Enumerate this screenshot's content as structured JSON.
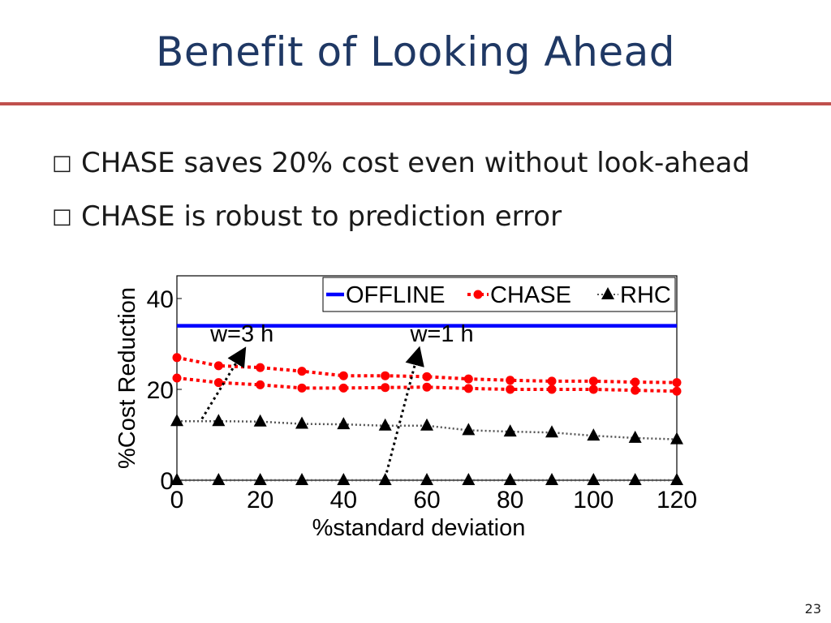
{
  "slide": {
    "title": "Benefit of Looking Ahead",
    "bullet_icon": "hollow-square",
    "bullets": [
      {
        "marker": "□",
        "text": "CHASE saves 20% cost even without look-ahead"
      },
      {
        "marker": "□",
        "text": "CHASE is robust to prediction error"
      }
    ],
    "page_number": "23",
    "accent_color": "#c0504d",
    "title_color": "#1f3864"
  },
  "chart_data": {
    "type": "line",
    "xlabel": "%standard deviation",
    "ylabel": "%Cost Reduction",
    "xlim": [
      0,
      120
    ],
    "ylim": [
      0,
      45
    ],
    "xticks": [
      0,
      20,
      40,
      60,
      80,
      100,
      120
    ],
    "yticks": [
      0,
      20,
      40
    ],
    "grid": false,
    "legend_position": "top-right",
    "legend": [
      {
        "name": "OFFLINE",
        "color": "#0000ff",
        "marker": "none",
        "style": "solid"
      },
      {
        "name": "CHASE",
        "color": "#ff0000",
        "marker": "circle",
        "style": "dotted"
      },
      {
        "name": "RHC",
        "color": "#000000",
        "marker": "triangle",
        "style": "dotted"
      }
    ],
    "x": [
      0,
      10,
      20,
      30,
      40,
      50,
      60,
      70,
      80,
      90,
      100,
      110,
      120
    ],
    "series": [
      {
        "name": "OFFLINE",
        "legend": "OFFLINE",
        "color": "#0000ff",
        "marker": "none",
        "style": "solid",
        "values": [
          34,
          34,
          34,
          34,
          34,
          34,
          34,
          34,
          34,
          34,
          34,
          34,
          34
        ]
      },
      {
        "name": "CHASE",
        "legend": "CHASE",
        "group": "w=3 h",
        "color": "#ff0000",
        "marker": "circle",
        "style": "dotted",
        "values": [
          27,
          25.2,
          24.8,
          24,
          23,
          23,
          22.8,
          22.3,
          22,
          21.8,
          21.8,
          21.6,
          21.5
        ]
      },
      {
        "name": "CHASE",
        "legend": null,
        "group": "w=1 h",
        "color": "#ff0000",
        "marker": "circle",
        "style": "dotted",
        "values": [
          22.5,
          21.5,
          21,
          20.3,
          20.3,
          20.4,
          20.5,
          20.2,
          20,
          20,
          20,
          19.8,
          19.6
        ]
      },
      {
        "name": "RHC",
        "legend": "RHC",
        "group": "w=3 h",
        "color": "#000000",
        "marker": "triangle",
        "style": "dotted",
        "values": [
          13,
          13,
          12.9,
          12.4,
          12.3,
          12,
          12,
          11,
          10.7,
          10.5,
          9.8,
          9.3,
          9
        ]
      },
      {
        "name": "RHC",
        "legend": null,
        "group": "w=1 h",
        "color": "#000000",
        "marker": "triangle",
        "style": "dotted",
        "values": [
          0,
          0,
          0,
          0,
          0,
          0,
          0,
          0,
          0,
          0,
          0,
          0,
          0
        ]
      }
    ],
    "annotations": [
      {
        "text": "w=3 h",
        "text_x": 8,
        "text_y": 30.5,
        "arrow_from": [
          6,
          13.5
        ],
        "arrow_to": [
          16,
          28.5
        ]
      },
      {
        "text": "w=1 h",
        "text_x": 56,
        "text_y": 30.5,
        "arrow_from": [
          50,
          0.5
        ],
        "arrow_to": [
          58,
          28.5
        ]
      }
    ]
  }
}
